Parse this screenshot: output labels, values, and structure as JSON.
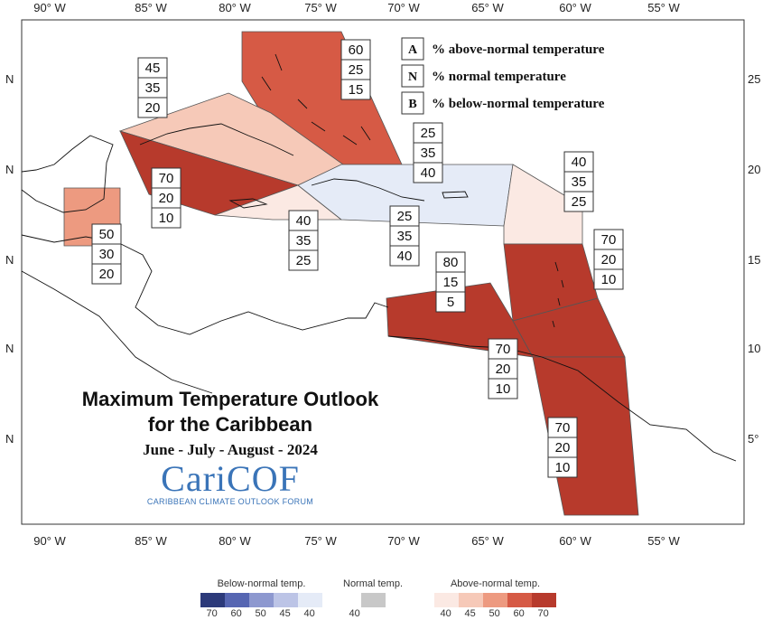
{
  "title": {
    "line1": "Maximum Temperature Outlook",
    "line2": "for the Caribbean",
    "period": "June - July - August - 2024"
  },
  "logo": {
    "name": "CariCOF",
    "subtitle": "CARIBBEAN CLIMATE OUTLOOK FORUM"
  },
  "axes": {
    "longitude_ticks": [
      "90° W",
      "85° W",
      "80° W",
      "75° W",
      "70° W",
      "65° W",
      "60° W",
      "55° W"
    ],
    "latitude_ticks_left": [
      "N",
      "N",
      "N",
      "N",
      "N"
    ],
    "latitude_ticks_right": [
      "25",
      "20",
      "15",
      "10",
      "5°"
    ]
  },
  "legend": {
    "items": [
      {
        "key": "A",
        "text": "% above-normal temperature"
      },
      {
        "key": "N",
        "text": "% normal temperature"
      },
      {
        "key": "B",
        "text": "% below-normal temperature"
      }
    ]
  },
  "colors": {
    "above_40": "#fbe9e3",
    "above_45": "#f6c9b8",
    "above_50": "#ed9a80",
    "above_60": "#d65a45",
    "above_70": "#b73a2c",
    "normal": "#c8c8c8",
    "below_40": "#e5ebf7",
    "outline": "#555555",
    "land": "#111111"
  },
  "regions": [
    {
      "id": "bahamas",
      "class": "above_60",
      "above": "60",
      "normal": "25",
      "below": "15"
    },
    {
      "id": "cuba-central",
      "class": "above_45",
      "above": "45",
      "normal": "35",
      "below": "20"
    },
    {
      "id": "cuba-west-cayman",
      "class": "above_70",
      "above": "70",
      "normal": "20",
      "below": "10"
    },
    {
      "id": "belize",
      "class": "above_50",
      "above": "50",
      "normal": "30",
      "below": "20"
    },
    {
      "id": "jamaica",
      "class": "above_40",
      "above": "40",
      "normal": "35",
      "below": "25"
    },
    {
      "id": "hispaniola-puertorico",
      "class": "below_40",
      "above": "25",
      "normal": "35",
      "below": "40"
    },
    {
      "id": "turks-caicos",
      "class": "below_40",
      "above": "25",
      "normal": "35",
      "below": "40"
    },
    {
      "id": "leeward",
      "class": "above_40",
      "above": "40",
      "normal": "35",
      "below": "25"
    },
    {
      "id": "windward",
      "class": "above_70",
      "above": "70",
      "normal": "20",
      "below": "10"
    },
    {
      "id": "abc-islands",
      "class": "above_70",
      "above": "80",
      "normal": "15",
      "below": "5"
    },
    {
      "id": "trinidad",
      "class": "above_70",
      "above": "70",
      "normal": "20",
      "below": "10"
    },
    {
      "id": "guianas",
      "class": "above_70",
      "above": "70",
      "normal": "20",
      "below": "10"
    }
  ],
  "colorbar": {
    "below": {
      "title": "Below-normal temp.",
      "ticks": [
        "70",
        "60",
        "50",
        "45",
        "40"
      ],
      "colors": [
        "#2c3a7a",
        "#5666b2",
        "#8d98cf",
        "#bcc4e6",
        "#e5ebf7"
      ]
    },
    "normal": {
      "title": "Normal temp.",
      "ticks": [
        "40"
      ],
      "colors": [
        "#c8c8c8"
      ]
    },
    "above": {
      "title": "Above-normal temp.",
      "ticks": [
        "40",
        "45",
        "50",
        "60",
        "70"
      ],
      "colors": [
        "#fbe9e3",
        "#f6c9b8",
        "#ed9a80",
        "#d65a45",
        "#b73a2c"
      ]
    }
  }
}
